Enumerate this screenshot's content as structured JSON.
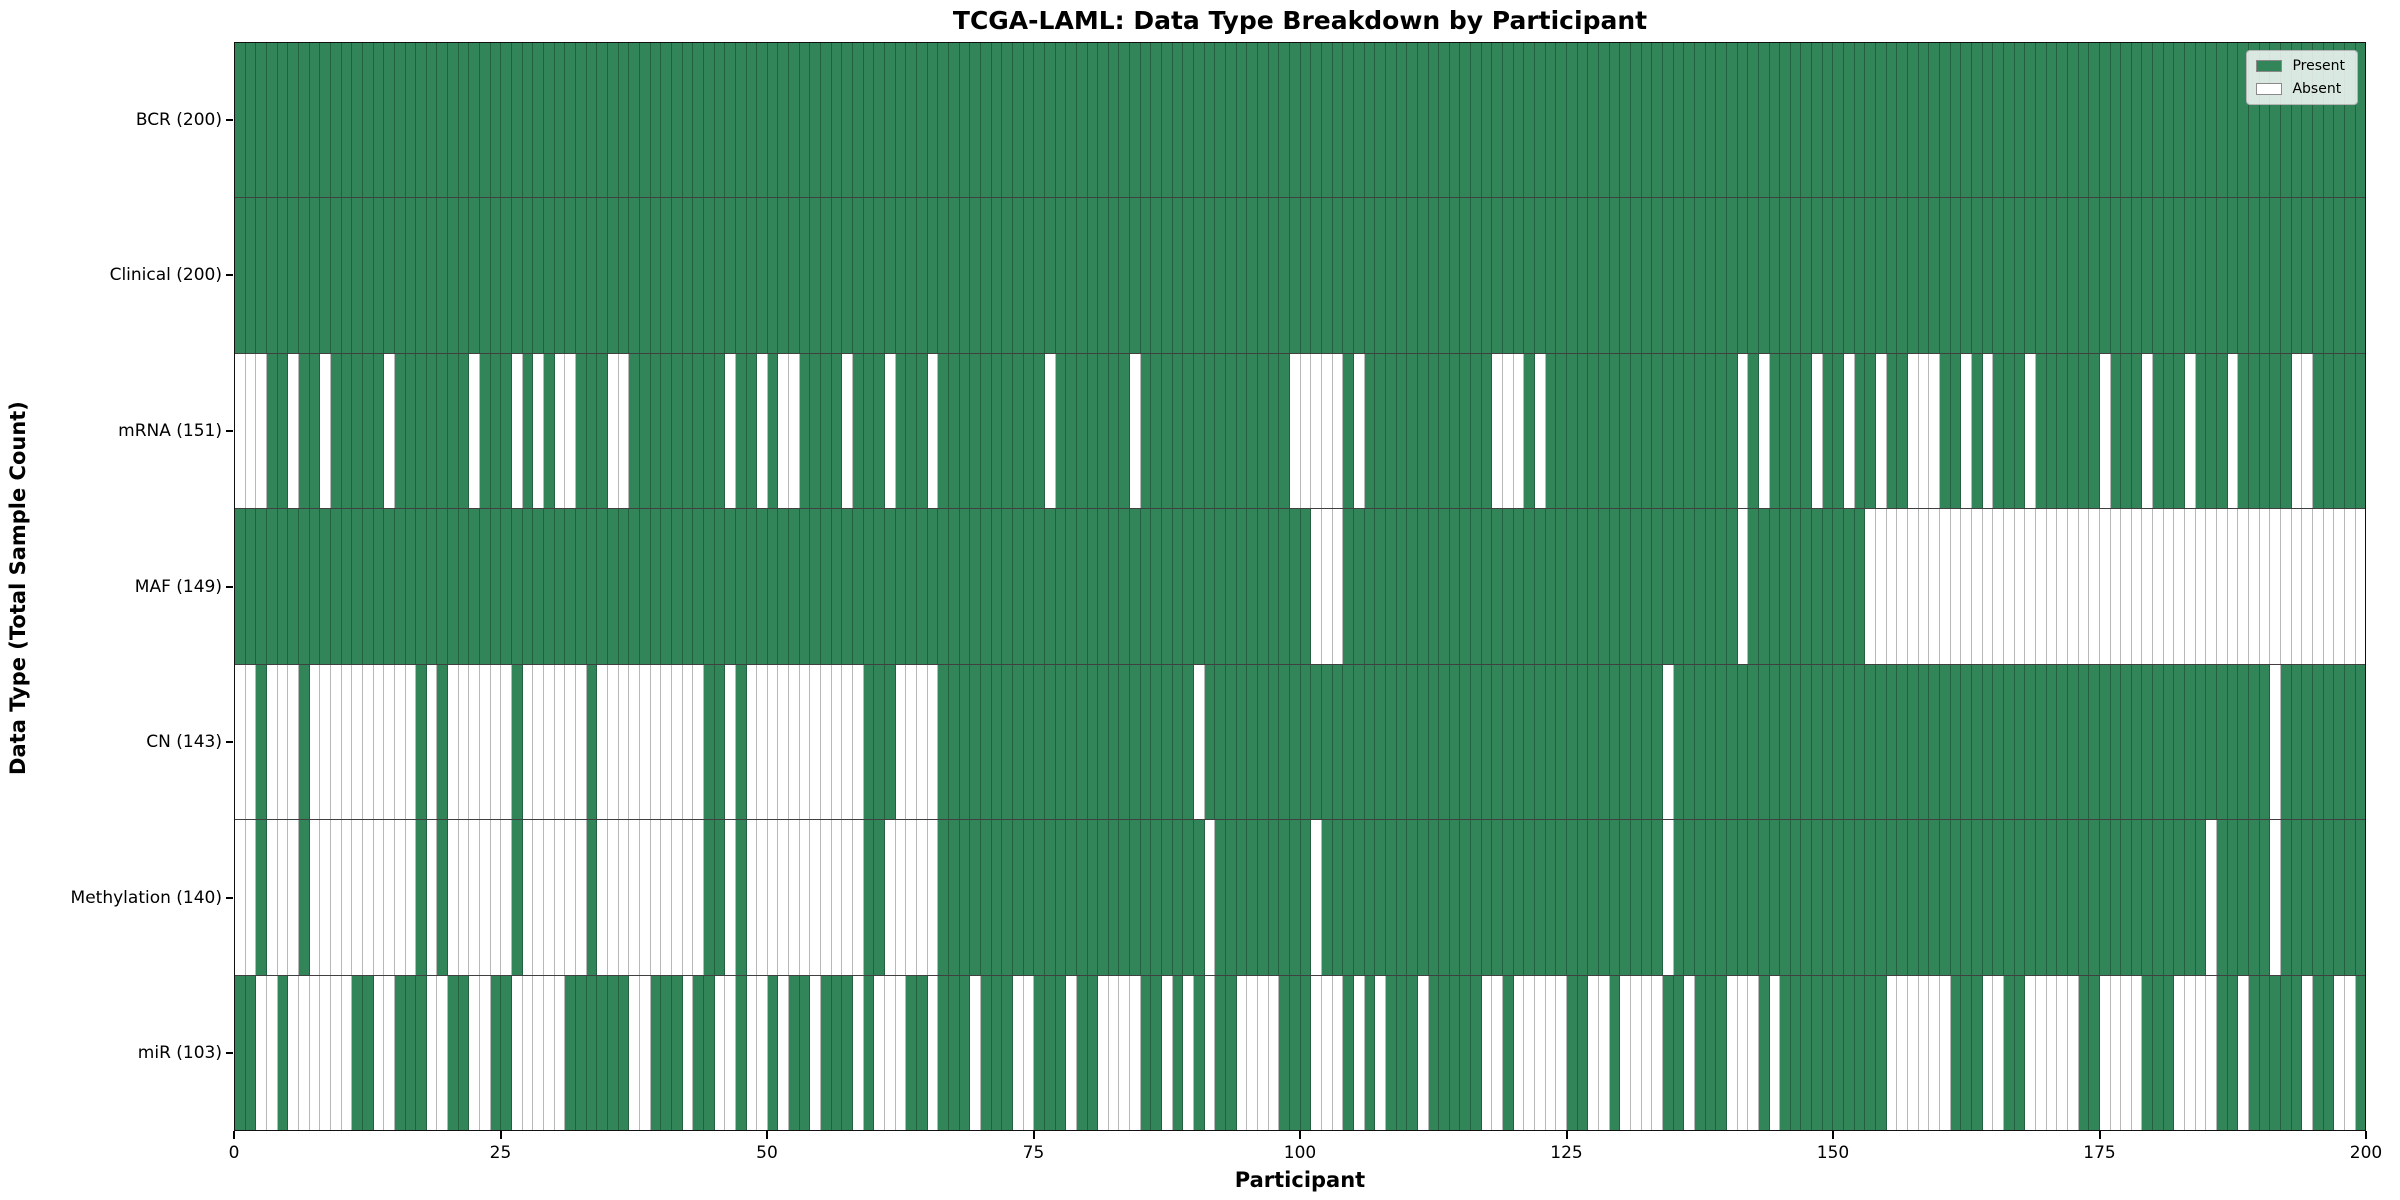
{
  "title": "TCGA-LAML: Data Type Breakdown by Participant",
  "xlabel": "Participant",
  "ylabel": "Data Type (Total Sample Count)",
  "legend": {
    "present_label": "Present",
    "absent_label": "Absent"
  },
  "colors": {
    "present": "#318558",
    "absent": "#ffffff",
    "grid": "rgba(0,0,0,0.28)"
  },
  "chart_data": {
    "type": "heatmap",
    "x_axis": {
      "label": "Participant",
      "min": 0,
      "max": 200,
      "ticks": [
        0,
        25,
        50,
        75,
        100,
        125,
        150,
        175,
        200
      ]
    },
    "y_axis": {
      "label": "Data Type (Total Sample Count)"
    },
    "n_participants": 200,
    "cell_states": [
      "Present",
      "Absent"
    ],
    "rows": [
      {
        "label": "BCR (200)",
        "name": "BCR",
        "present_count": 200,
        "absent_participants": []
      },
      {
        "label": "Clinical (200)",
        "name": "Clinical",
        "present_count": 200,
        "absent_participants": []
      },
      {
        "label": "mRNA (151)",
        "name": "mRNA",
        "present_count": 151,
        "absent_participants": [
          0,
          1,
          2,
          5,
          8,
          14,
          22,
          26,
          28,
          30,
          31,
          35,
          36,
          46,
          49,
          51,
          52,
          57,
          61,
          65,
          76,
          84,
          99,
          100,
          101,
          102,
          103,
          105,
          118,
          119,
          120,
          122,
          141,
          143,
          148,
          151,
          154,
          157,
          158,
          159,
          162,
          164,
          168,
          175,
          179,
          183,
          187,
          193,
          194
        ]
      },
      {
        "label": "MAF (149)",
        "name": "MAF",
        "present_count": 149,
        "absent_participants": [
          101,
          102,
          103,
          141,
          153,
          154,
          155,
          156,
          157,
          158,
          159,
          160,
          161,
          162,
          163,
          164,
          165,
          166,
          167,
          168,
          169,
          170,
          171,
          172,
          173,
          174,
          175,
          176,
          177,
          178,
          179,
          180,
          181,
          182,
          183,
          184,
          185,
          186,
          187,
          188,
          189,
          190,
          191,
          192,
          193,
          194,
          195,
          196,
          197,
          198,
          199
        ]
      },
      {
        "label": "CN (143)",
        "name": "CN",
        "present_count": 143,
        "absent_participants": [
          0,
          1,
          3,
          4,
          5,
          7,
          8,
          9,
          10,
          11,
          12,
          13,
          14,
          15,
          16,
          18,
          20,
          21,
          22,
          23,
          24,
          25,
          27,
          28,
          29,
          30,
          31,
          32,
          34,
          35,
          36,
          37,
          38,
          39,
          40,
          41,
          42,
          43,
          46,
          48,
          49,
          50,
          51,
          52,
          53,
          54,
          55,
          56,
          57,
          58,
          62,
          63,
          64,
          65,
          90,
          134,
          191
        ]
      },
      {
        "label": "Methylation (140)",
        "name": "Methylation",
        "present_count": 140,
        "absent_participants": [
          0,
          1,
          3,
          4,
          5,
          7,
          8,
          9,
          10,
          11,
          12,
          13,
          14,
          15,
          16,
          18,
          20,
          21,
          22,
          23,
          24,
          25,
          27,
          28,
          29,
          30,
          31,
          32,
          34,
          35,
          36,
          37,
          38,
          39,
          40,
          41,
          42,
          43,
          46,
          48,
          49,
          50,
          51,
          52,
          53,
          54,
          55,
          56,
          57,
          58,
          61,
          62,
          63,
          64,
          65,
          91,
          101,
          134,
          185,
          191
        ]
      },
      {
        "label": "miR (103)",
        "name": "miR",
        "present_count": 103,
        "absent_participants": [
          2,
          3,
          5,
          6,
          7,
          8,
          9,
          10,
          13,
          14,
          18,
          19,
          22,
          23,
          26,
          27,
          28,
          29,
          30,
          37,
          38,
          42,
          45,
          46,
          48,
          49,
          51,
          54,
          58,
          60,
          61,
          62,
          65,
          69,
          73,
          74,
          78,
          81,
          82,
          83,
          84,
          87,
          89,
          91,
          94,
          95,
          96,
          97,
          101,
          102,
          103,
          105,
          107,
          111,
          117,
          118,
          120,
          121,
          122,
          123,
          124,
          127,
          128,
          130,
          131,
          132,
          133,
          136,
          140,
          141,
          142,
          144,
          155,
          156,
          157,
          158,
          159,
          160,
          164,
          165,
          168,
          169,
          170,
          171,
          172,
          175,
          176,
          177,
          178,
          182,
          183,
          184,
          185,
          188,
          194,
          197,
          198
        ]
      }
    ]
  }
}
